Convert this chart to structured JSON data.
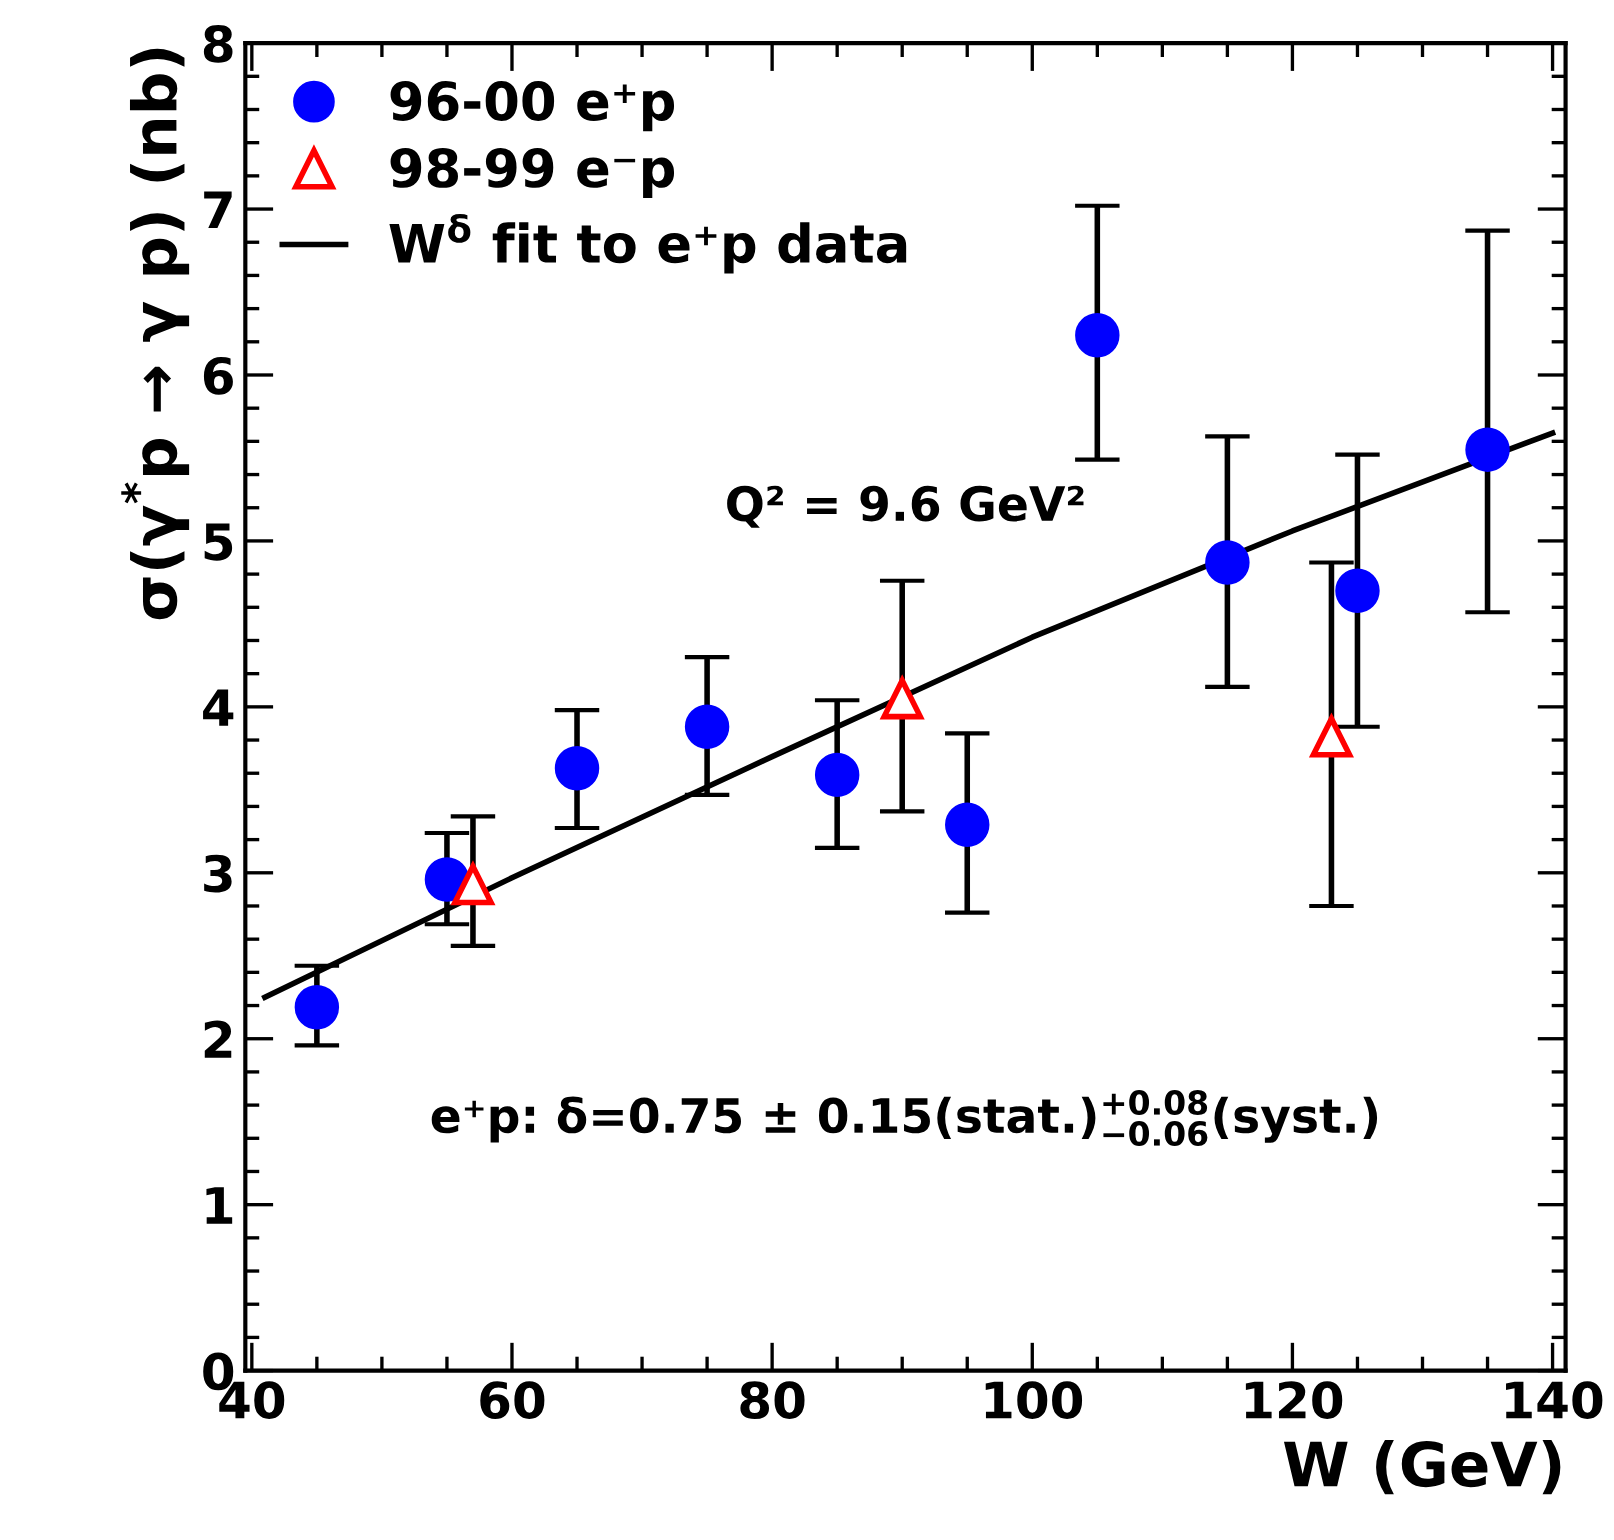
{
  "chart_data": {
    "type": "scatter",
    "xlabel": "W (GeV)",
    "ylabel": "σ(γ$^{*}$p → γ p) (nb)",
    "xlim": [
      39.5,
      141
    ],
    "xticks": [
      40,
      60,
      80,
      100,
      120,
      140
    ],
    "ylim": [
      0,
      8
    ],
    "yticks": [
      0,
      1,
      2,
      3,
      4,
      5,
      6,
      7,
      8
    ],
    "grid": false,
    "legend": "top left",
    "series": [
      {
        "name": "96-00 e⁺p",
        "marker": "circle",
        "color": "#0000ff",
        "x": [
          45,
          55,
          65,
          75,
          85,
          95,
          105,
          115,
          125,
          135
        ],
        "values": [
          2.19,
          2.96,
          3.63,
          3.88,
          3.59,
          3.29,
          6.24,
          4.87,
          4.7,
          5.55
        ],
        "errors": [
          [
            1.96,
            2.44
          ],
          [
            2.69,
            3.24
          ],
          [
            3.27,
            3.98
          ],
          [
            3.47,
            4.3
          ],
          [
            3.15,
            4.04
          ],
          [
            2.76,
            3.84
          ],
          [
            5.49,
            7.02
          ],
          [
            4.12,
            5.63
          ],
          [
            3.88,
            5.52
          ],
          [
            4.57,
            6.87
          ]
        ]
      },
      {
        "name": "98-99 e⁻p",
        "marker": "triangle",
        "color": "#ff0000",
        "x": [
          57,
          90,
          123
        ],
        "values": [
          2.93,
          4.05,
          3.82
        ],
        "errors": [
          [
            2.56,
            3.34
          ],
          [
            3.37,
            4.76
          ],
          [
            2.8,
            4.87
          ]
        ]
      },
      {
        "name": "W$^{δ}$ fit to e⁺p data",
        "type": "line",
        "marker": "none",
        "line_style": "solid",
        "color": "#000000",
        "x": [
          41,
          60,
          80,
          100,
          120,
          140
        ],
        "values": [
          2.25,
          2.97,
          3.7,
          4.42,
          5.06,
          5.65
        ]
      }
    ],
    "annotations": [
      "Q² = 9.6 GeV²",
      "e⁺p: δ=0.75 ± 0.15(stat.)$^{+0.08}$$_{−0.06}$(syst.)"
    ]
  }
}
